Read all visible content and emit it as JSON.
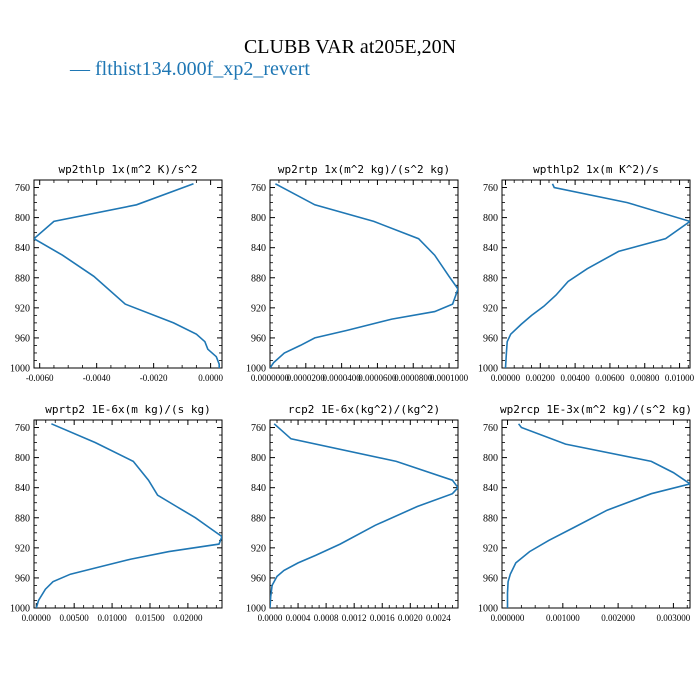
{
  "suptitle": "CLUBB VAR at205E,20N",
  "legend": {
    "label": "flthist134.000f_xp2_revert",
    "color": "#1f77b4"
  },
  "chart_data": [
    {
      "type": "line",
      "title": "wp2thlp  1x(m^2 K)/s^2",
      "xlim": [
        -0.0062,
        0.0004
      ],
      "xticks": [
        -0.006,
        -0.004,
        -0.002,
        0.0
      ],
      "xtick_labels": [
        "-0.0060",
        "-0.0040",
        "-0.0020",
        "0.0000"
      ],
      "ylim": [
        1000,
        750
      ],
      "yticks": [
        760,
        800,
        840,
        880,
        920,
        960,
        1000
      ],
      "ytick_labels": [
        "760",
        "800",
        "840",
        "880",
        "920",
        "960",
        "1000"
      ],
      "y": [
        755,
        783,
        805,
        828,
        850,
        878,
        915,
        940,
        955,
        965,
        975,
        985,
        995,
        1000
      ],
      "x": [
        -0.0006,
        -0.0026,
        -0.0055,
        -0.0062,
        -0.0052,
        -0.0041,
        -0.003,
        -0.0013,
        -0.0005,
        -0.0002,
        -0.0001,
        0.0002,
        0.0003,
        0.0003
      ]
    },
    {
      "type": "line",
      "title": "wp2rtp  1x(m^2 kg)/(s^2 kg)",
      "xlim": [
        0.0,
        0.000105
      ],
      "xticks": [
        0.0,
        2e-05,
        4e-05,
        6e-05,
        8e-05,
        0.0001
      ],
      "xtick_labels": [
        "0.0000000",
        "0.0000200",
        "0.0000400",
        "0.0000600",
        "0.0000800",
        "0.0001000"
      ],
      "ylim": [
        1000,
        750
      ],
      "yticks": [
        760,
        800,
        840,
        880,
        920,
        960,
        1000
      ],
      "ytick_labels": [
        "760",
        "800",
        "840",
        "880",
        "920",
        "960",
        "1000"
      ],
      "y": [
        755,
        783,
        805,
        828,
        850,
        878,
        895,
        915,
        925,
        935,
        950,
        960,
        970,
        980,
        993,
        1000
      ],
      "x": [
        3e-06,
        2.5e-05,
        5.8e-05,
        8.3e-05,
        9.2e-05,
        0.0001,
        0.000105,
        0.000102,
        9.2e-05,
        6.8e-05,
        4.3e-05,
        2.5e-05,
        1.7e-05,
        8e-06,
        2e-06,
        0.0
      ]
    },
    {
      "type": "line",
      "title": "wpthlp2  1x(m K^2)/s",
      "xlim": [
        -0.0002,
        0.0106
      ],
      "xticks": [
        0.0,
        0.002,
        0.004,
        0.006,
        0.008,
        0.01
      ],
      "xtick_labels": [
        "0.00000",
        "0.00200",
        "0.00400",
        "0.00600",
        "0.00800",
        "0.01000"
      ],
      "ylim": [
        1000,
        750
      ],
      "yticks": [
        760,
        800,
        840,
        880,
        920,
        960,
        1000
      ],
      "ytick_labels": [
        "760",
        "800",
        "840",
        "880",
        "920",
        "960",
        "1000"
      ],
      "y": [
        755,
        760,
        780,
        805,
        828,
        845,
        868,
        885,
        903,
        918,
        930,
        942,
        955,
        965,
        980,
        1000
      ],
      "x": [
        0.0027,
        0.0028,
        0.007,
        0.0106,
        0.0092,
        0.0065,
        0.0047,
        0.0036,
        0.0029,
        0.0022,
        0.0015,
        0.0009,
        0.0003,
        0.0001,
        5e-05,
        0.0
      ]
    },
    {
      "type": "line",
      "title": "wprtp2  1E-6x(m kg)/(s kg)",
      "xlim": [
        -0.0003,
        0.0245
      ],
      "xticks": [
        0.0,
        0.005,
        0.01,
        0.015,
        0.02
      ],
      "xtick_labels": [
        "0.00000",
        "0.00500",
        "0.01000",
        "0.01500",
        "0.02000"
      ],
      "ylim": [
        1000,
        750
      ],
      "yticks": [
        760,
        800,
        840,
        880,
        920,
        960,
        1000
      ],
      "ytick_labels": [
        "760",
        "800",
        "840",
        "880",
        "920",
        "960",
        "1000"
      ],
      "y": [
        755,
        780,
        805,
        830,
        850,
        865,
        880,
        893,
        905,
        915,
        925,
        935,
        945,
        955,
        965,
        975,
        990,
        1000
      ],
      "x": [
        0.002,
        0.0078,
        0.0128,
        0.0148,
        0.016,
        0.0185,
        0.021,
        0.0228,
        0.0245,
        0.0241,
        0.0175,
        0.0125,
        0.0085,
        0.0045,
        0.0022,
        0.0012,
        0.0003,
        0.0
      ]
    },
    {
      "type": "line",
      "title": "rcp2  1E-6x(kg^2)/(kg^2)",
      "xlim": [
        0.0,
        0.00268
      ],
      "xticks": [
        0.0,
        0.0004,
        0.0008,
        0.0012,
        0.0016,
        0.002,
        0.0024
      ],
      "xtick_labels": [
        "0.0000",
        "0.0004",
        "0.0008",
        "0.0012",
        "0.0016",
        "0.0020",
        "0.0024"
      ],
      "ylim": [
        1000,
        750
      ],
      "yticks": [
        760,
        800,
        840,
        880,
        920,
        960,
        1000
      ],
      "ytick_labels": [
        "760",
        "800",
        "840",
        "880",
        "920",
        "960",
        "1000"
      ],
      "y": [
        755,
        775,
        805,
        830,
        840,
        848,
        865,
        890,
        915,
        930,
        940,
        950,
        958,
        970,
        985,
        1000
      ],
      "x": [
        6e-05,
        0.0003,
        0.0018,
        0.0026,
        0.00268,
        0.0026,
        0.0021,
        0.0015,
        0.001,
        0.00065,
        0.0004,
        0.0002,
        0.0001,
        3e-05,
        1e-05,
        0.0
      ]
    },
    {
      "type": "line",
      "title": "wp2rcp  1E-3x(m^2 kg)/(s^2 kg)",
      "xlim": [
        -0.0001,
        0.0033
      ],
      "xticks": [
        0.0,
        0.001,
        0.002,
        0.003
      ],
      "xtick_labels": [
        "0.000000",
        "0.001000",
        "0.002000",
        "0.003000"
      ],
      "ylim": [
        1000,
        750
      ],
      "yticks": [
        760,
        800,
        840,
        880,
        920,
        960,
        1000
      ],
      "ytick_labels": [
        "760",
        "800",
        "840",
        "880",
        "920",
        "960",
        "1000"
      ],
      "y": [
        755,
        760,
        782,
        805,
        820,
        835,
        848,
        870,
        893,
        910,
        925,
        940,
        955,
        965,
        980,
        1000
      ],
      "x": [
        0.0002,
        0.00025,
        0.00105,
        0.0026,
        0.003,
        0.0033,
        0.0026,
        0.0018,
        0.0012,
        0.00075,
        0.0004,
        0.00015,
        5e-05,
        1e-05,
        0.0,
        0.0
      ]
    }
  ]
}
